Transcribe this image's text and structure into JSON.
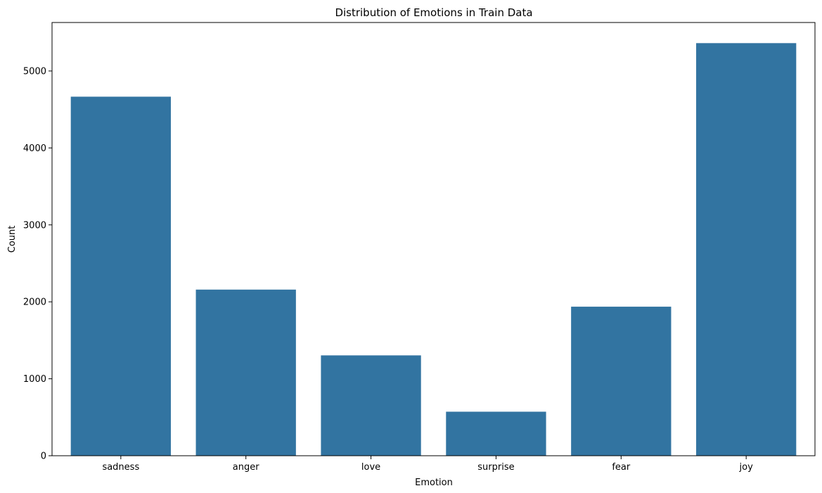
{
  "chart_data": {
    "type": "bar",
    "title": "Distribution of Emotions in Train Data",
    "xlabel": "Emotion",
    "ylabel": "Count",
    "categories": [
      "sadness",
      "anger",
      "love",
      "surprise",
      "fear",
      "joy"
    ],
    "values": [
      4666,
      2159,
      1304,
      572,
      1937,
      5362
    ],
    "ylim": [
      0,
      5630
    ],
    "yticks": [
      0,
      1000,
      2000,
      3000,
      4000,
      5000
    ],
    "grid": false,
    "bar_color": "#3274a1"
  }
}
